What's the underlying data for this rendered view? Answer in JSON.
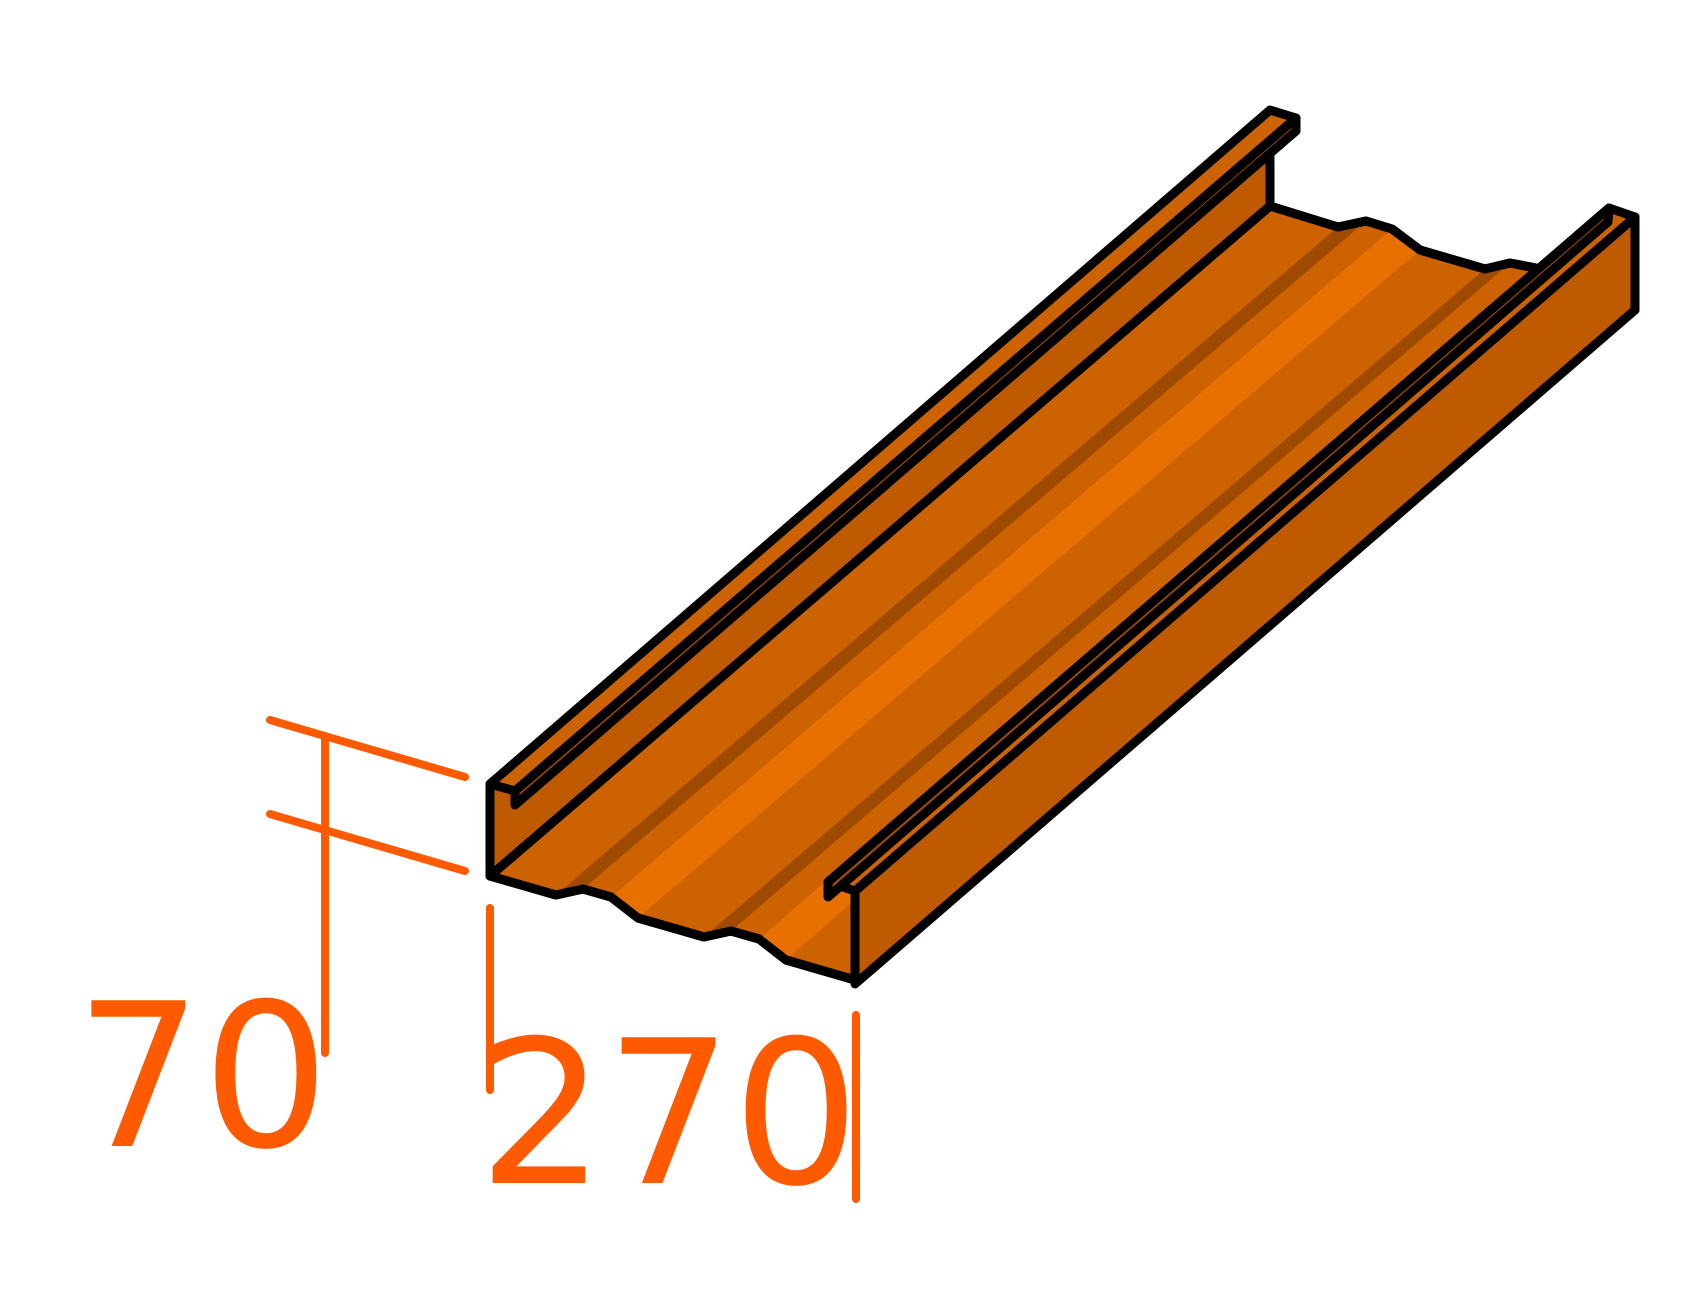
{
  "diagram": {
    "subject": "metal-profile-section",
    "dimensions": {
      "height_label": "70",
      "width_label": "270"
    },
    "colors": {
      "profile_main": "#CC6200",
      "profile_side": "#BF5A00",
      "profile_light": "#E87000",
      "profile_dark": "#9E4A00",
      "outline": "#000000",
      "dimension": "#FF5A00",
      "background": "#FFFFFF"
    }
  }
}
